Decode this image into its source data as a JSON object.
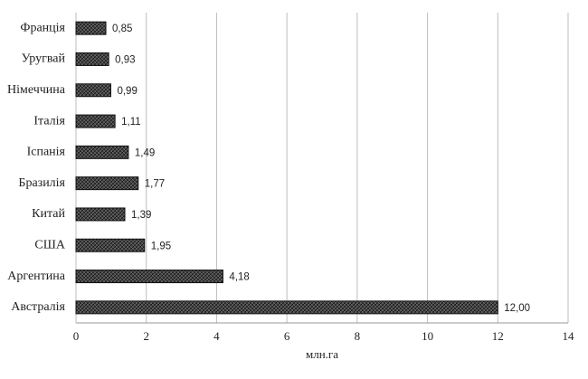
{
  "chart_data": {
    "type": "bar",
    "orientation": "horizontal",
    "categories": [
      "Франція",
      "Уругвай",
      "Німеччина",
      "Італія",
      "Іспанія",
      "Бразилія",
      "Китай",
      "США",
      "Аргентина",
      "Австралія"
    ],
    "values": [
      0.85,
      0.93,
      0.99,
      1.11,
      1.49,
      1.77,
      1.39,
      1.95,
      4.18,
      12.0
    ],
    "value_labels": [
      "0,85",
      "0,93",
      "0,99",
      "1,11",
      "1,49",
      "1,77",
      "1,39",
      "1,95",
      "4,18",
      "12,00"
    ],
    "color": "#3a3a3a",
    "x_label": "млн.га",
    "xlim": [
      0,
      14
    ],
    "xticks": [
      0,
      2,
      4,
      6,
      8,
      10,
      12,
      14
    ],
    "grid": true
  }
}
